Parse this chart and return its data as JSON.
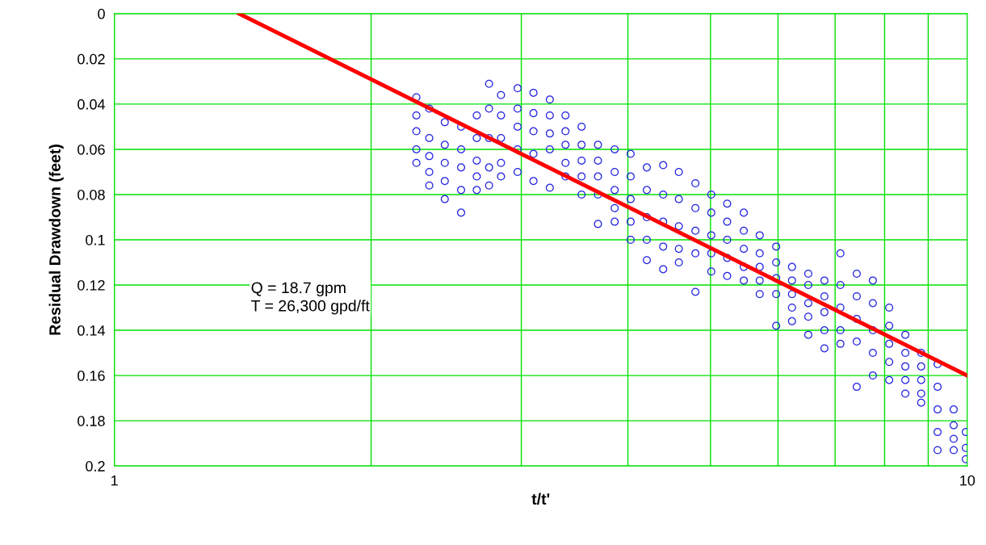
{
  "chart_data": {
    "type": "scatter",
    "xlabel": "t/t'",
    "ylabel": "Residual Drawdown (feet)",
    "log": "x",
    "grid": true,
    "xlim": [
      1,
      10
    ],
    "xticks": [
      1,
      {
        "value": 2,
        "label": null
      },
      {
        "value": 3,
        "label": null
      },
      {
        "value": 4,
        "label": null
      },
      {
        "value": 5,
        "label": null
      },
      {
        "value": 6,
        "label": null
      },
      {
        "value": 7,
        "label": null
      },
      {
        "value": 8,
        "label": null
      },
      {
        "value": 9,
        "label": null
      },
      10
    ],
    "ylim": [
      0.2,
      0
    ],
    "yticks": [
      0,
      0.02,
      0.04,
      0.06,
      0.08,
      0.1,
      0.12,
      0.14,
      0.16,
      0.18,
      0.2
    ],
    "annotations": [
      "Q = 18.7 gpm\nT = 26,300 gpd/ft"
    ],
    "series": [
      {
        "marker": "circle",
        "color": "#2020e0",
        "x": [
          2.26,
          2.26,
          2.26,
          2.26,
          2.26,
          2.34,
          2.34,
          2.34,
          2.34,
          2.34,
          2.44,
          2.44,
          2.44,
          2.44,
          2.44,
          2.55,
          2.55,
          2.55,
          2.55,
          2.55,
          2.66,
          2.66,
          2.66,
          2.66,
          2.66,
          2.75,
          2.75,
          2.75,
          2.75,
          2.75,
          2.84,
          2.84,
          2.84,
          2.84,
          2.84,
          2.97,
          2.97,
          2.97,
          2.97,
          2.97,
          3.1,
          3.1,
          3.1,
          3.1,
          3.1,
          3.24,
          3.24,
          3.24,
          3.24,
          3.24,
          3.38,
          3.38,
          3.38,
          3.38,
          3.38,
          3.53,
          3.53,
          3.53,
          3.53,
          3.53,
          3.69,
          3.69,
          3.69,
          3.69,
          3.69,
          3.86,
          3.86,
          3.86,
          3.86,
          3.86,
          4.03,
          4.03,
          4.03,
          4.03,
          4.03,
          4.21,
          4.21,
          4.21,
          4.21,
          4.21,
          4.4,
          4.4,
          4.4,
          4.4,
          4.4,
          4.59,
          4.59,
          4.59,
          4.59,
          4.59,
          4.8,
          4.8,
          4.8,
          4.8,
          4.8,
          5.01,
          5.01,
          5.01,
          5.01,
          5.01,
          5.23,
          5.23,
          5.23,
          5.23,
          5.23,
          5.47,
          5.47,
          5.47,
          5.47,
          5.47,
          5.71,
          5.71,
          5.71,
          5.71,
          5.71,
          5.97,
          5.97,
          5.97,
          5.97,
          5.97,
          6.23,
          6.23,
          6.23,
          6.23,
          6.23,
          6.51,
          6.51,
          6.51,
          6.51,
          6.51,
          6.8,
          6.8,
          6.8,
          6.8,
          6.8,
          7.1,
          7.1,
          7.1,
          7.1,
          7.1,
          7.42,
          7.42,
          7.42,
          7.42,
          7.42,
          7.75,
          7.75,
          7.75,
          7.75,
          7.75,
          8.1,
          8.1,
          8.1,
          8.1,
          8.1,
          8.46,
          8.46,
          8.46,
          8.46,
          8.46,
          8.83,
          8.83,
          8.83,
          8.83,
          8.83,
          9.23,
          9.23,
          9.23,
          9.23,
          9.23,
          9.64,
          9.64,
          9.64,
          9.64,
          9.96,
          9.96,
          9.96
        ],
        "values": [
          0.037,
          0.045,
          0.052,
          0.06,
          0.066,
          0.042,
          0.055,
          0.063,
          0.07,
          0.076,
          0.048,
          0.058,
          0.066,
          0.074,
          0.082,
          0.05,
          0.06,
          0.068,
          0.078,
          0.088,
          0.045,
          0.055,
          0.065,
          0.072,
          0.078,
          0.031,
          0.042,
          0.055,
          0.068,
          0.076,
          0.036,
          0.045,
          0.055,
          0.066,
          0.072,
          0.033,
          0.042,
          0.05,
          0.06,
          0.07,
          0.035,
          0.044,
          0.052,
          0.062,
          0.074,
          0.038,
          0.045,
          0.053,
          0.06,
          0.077,
          0.045,
          0.052,
          0.058,
          0.066,
          0.072,
          0.05,
          0.058,
          0.065,
          0.072,
          0.08,
          0.058,
          0.065,
          0.072,
          0.08,
          0.093,
          0.06,
          0.07,
          0.078,
          0.086,
          0.092,
          0.062,
          0.072,
          0.082,
          0.092,
          0.1,
          0.068,
          0.078,
          0.09,
          0.1,
          0.109,
          0.067,
          0.08,
          0.092,
          0.103,
          0.113,
          0.07,
          0.082,
          0.094,
          0.104,
          0.11,
          0.075,
          0.086,
          0.096,
          0.106,
          0.123,
          0.08,
          0.088,
          0.098,
          0.106,
          0.114,
          0.084,
          0.092,
          0.1,
          0.108,
          0.116,
          0.088,
          0.096,
          0.104,
          0.112,
          0.118,
          0.098,
          0.106,
          0.112,
          0.118,
          0.124,
          0.103,
          0.11,
          0.117,
          0.124,
          0.138,
          0.112,
          0.118,
          0.124,
          0.13,
          0.136,
          0.115,
          0.12,
          0.128,
          0.134,
          0.142,
          0.118,
          0.125,
          0.132,
          0.14,
          0.148,
          0.106,
          0.12,
          0.13,
          0.14,
          0.146,
          0.115,
          0.125,
          0.135,
          0.145,
          0.165,
          0.118,
          0.128,
          0.14,
          0.15,
          0.16,
          0.13,
          0.138,
          0.146,
          0.154,
          0.162,
          0.142,
          0.15,
          0.156,
          0.162,
          0.168,
          0.15,
          0.156,
          0.162,
          0.168,
          0.172,
          0.155,
          0.165,
          0.175,
          0.185,
          0.193,
          0.175,
          0.182,
          0.188,
          0.193,
          0.185,
          0.192,
          0.197
        ]
      },
      {
        "type": "line",
        "color": "#ff0000",
        "x": [
          1.4,
          10
        ],
        "values": [
          0,
          0.16
        ]
      }
    ]
  }
}
